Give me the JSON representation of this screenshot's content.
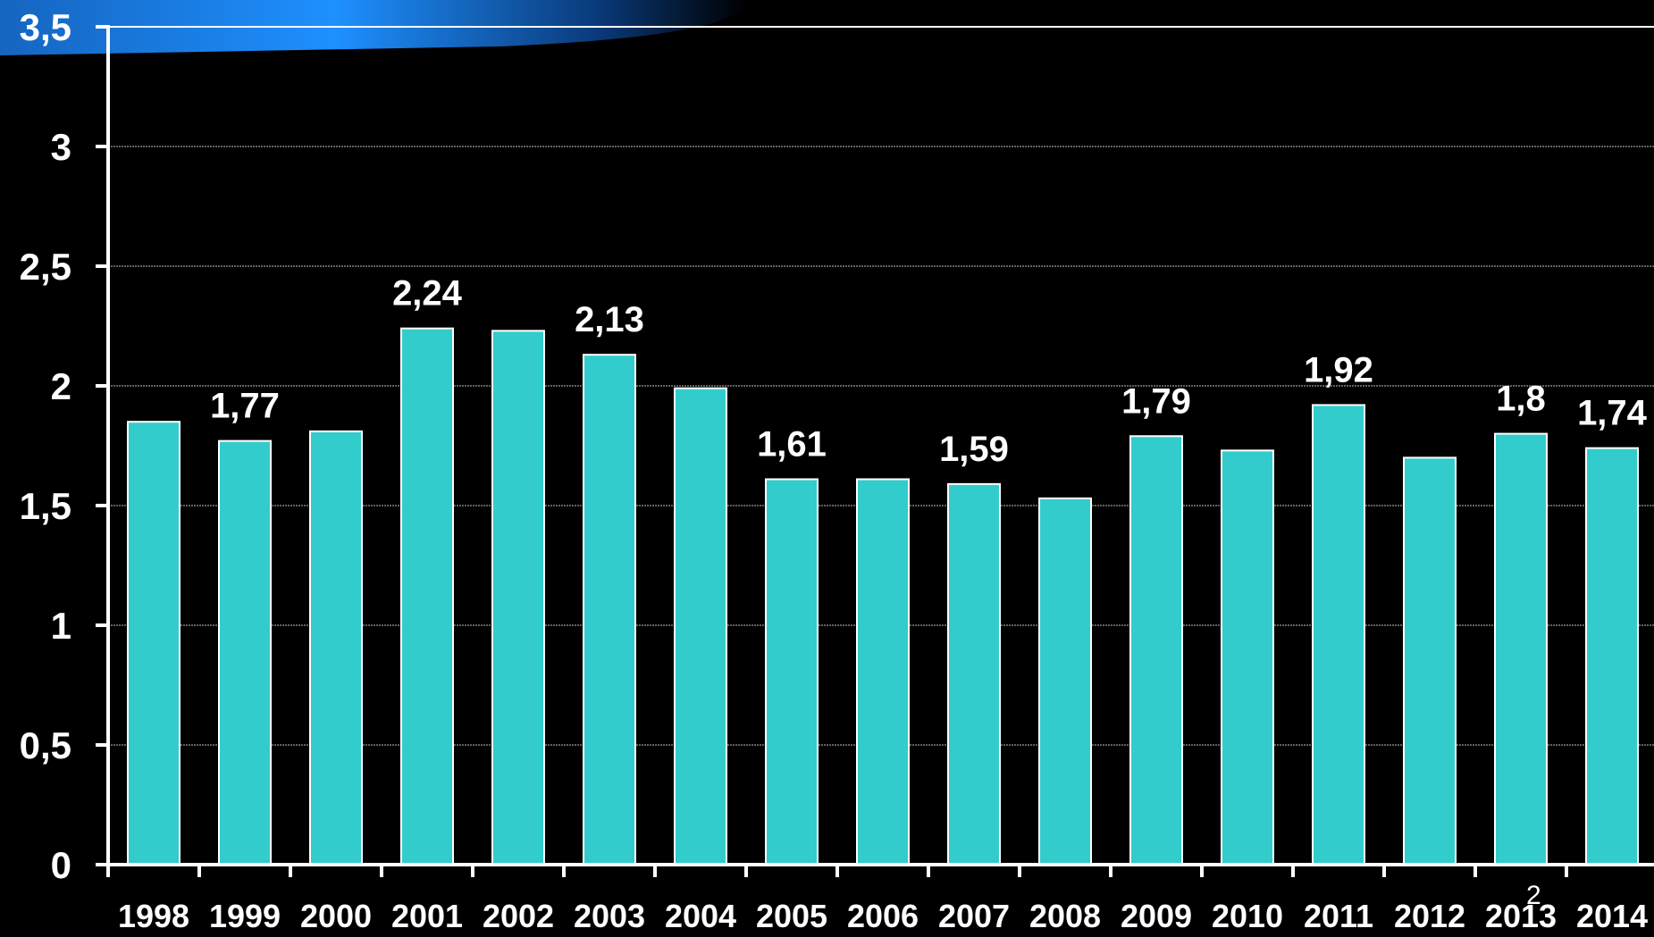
{
  "page_number": "2",
  "colors": {
    "background": "#000000",
    "bar_fill": "#33CCCC",
    "bar_stroke": "#FFFFFF",
    "axis": "#FFFFFF",
    "gridline": "#FFFFFF",
    "text": "#FFFFFF",
    "banner": "#1E90FF"
  },
  "chart_data": {
    "type": "bar",
    "title": "",
    "xlabel": "",
    "ylabel": "",
    "grid": true,
    "ylim": [
      0,
      3.5
    ],
    "y_ticks": [
      {
        "value": 0,
        "label": "0"
      },
      {
        "value": 0.5,
        "label": "0,5"
      },
      {
        "value": 1,
        "label": "1"
      },
      {
        "value": 1.5,
        "label": "1,5"
      },
      {
        "value": 2,
        "label": "2"
      },
      {
        "value": 2.5,
        "label": "2,5"
      },
      {
        "value": 3,
        "label": "3"
      },
      {
        "value": 3.5,
        "label": "3,5"
      }
    ],
    "categories": [
      "1998",
      "1999",
      "2000",
      "2001",
      "2002",
      "2003",
      "2004",
      "2005",
      "2006",
      "2007",
      "2008",
      "2009",
      "2010",
      "2011",
      "2012",
      "2013",
      "2014"
    ],
    "values": [
      1.85,
      1.77,
      1.81,
      2.24,
      2.23,
      2.13,
      1.99,
      1.61,
      1.61,
      1.59,
      1.53,
      1.79,
      1.73,
      1.92,
      1.7,
      1.8,
      1.74
    ],
    "data_labels": [
      "",
      "1,77",
      "",
      "2,24",
      "",
      "2,13",
      "",
      "1,61",
      "",
      "1,59",
      "",
      "1,79",
      "",
      "1,92",
      "",
      "1,8",
      "1,74"
    ]
  }
}
